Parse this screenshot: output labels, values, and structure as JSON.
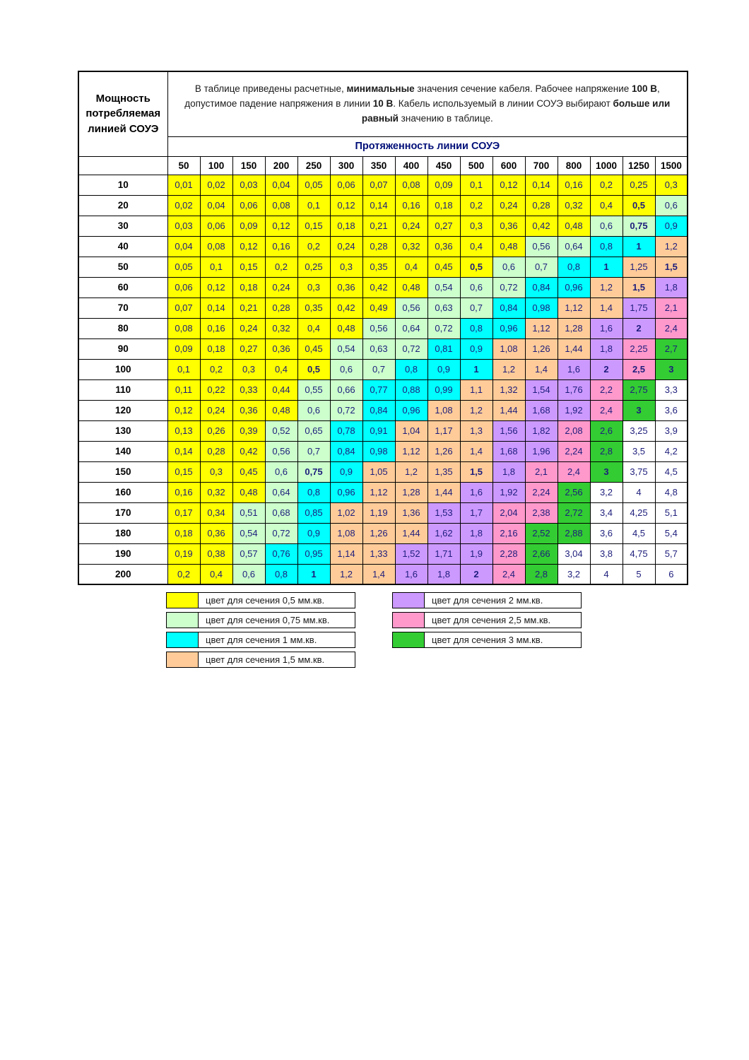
{
  "table": {
    "power_header": "Мощность потребляемая линией СОУЭ",
    "length_header": "Протяженность линии СОУЭ",
    "note_segments": [
      {
        "text": "В таблице приведены расчетные, ",
        "bold": false
      },
      {
        "text": "минимальные",
        "bold": true
      },
      {
        "text": " значения сечение кабеля. Рабочее напряжение ",
        "bold": false
      },
      {
        "text": "100 В",
        "bold": true
      },
      {
        "text": ", допустимое падение напряжения в линии ",
        "bold": false
      },
      {
        "text": "10 В",
        "bold": true
      },
      {
        "text": ". Кабель используемый в линии СОУЭ выбирают ",
        "bold": false
      },
      {
        "text": "больше или равный",
        "bold": true
      },
      {
        "text": " значению в таблице.",
        "bold": false
      }
    ],
    "columns": [
      "50",
      "100",
      "150",
      "200",
      "250",
      "300",
      "350",
      "400",
      "450",
      "500",
      "600",
      "700",
      "800",
      "1000",
      "1250",
      "1500"
    ],
    "rows": [
      {
        "power": "10",
        "values": [
          "0,01",
          "0,02",
          "0,03",
          "0,04",
          "0,05",
          "0,06",
          "0,07",
          "0,08",
          "0,09",
          "0,1",
          "0,12",
          "0,14",
          "0,16",
          "0,2",
          "0,25",
          "0,3"
        ]
      },
      {
        "power": "20",
        "values": [
          "0,02",
          "0,04",
          "0,06",
          "0,08",
          "0,1",
          "0,12",
          "0,14",
          "0,16",
          "0,18",
          "0,2",
          "0,24",
          "0,28",
          "0,32",
          "0,4",
          "0,5",
          "0,6"
        ]
      },
      {
        "power": "30",
        "values": [
          "0,03",
          "0,06",
          "0,09",
          "0,12",
          "0,15",
          "0,18",
          "0,21",
          "0,24",
          "0,27",
          "0,3",
          "0,36",
          "0,42",
          "0,48",
          "0,6",
          "0,75",
          "0,9"
        ]
      },
      {
        "power": "40",
        "values": [
          "0,04",
          "0,08",
          "0,12",
          "0,16",
          "0,2",
          "0,24",
          "0,28",
          "0,32",
          "0,36",
          "0,4",
          "0,48",
          "0,56",
          "0,64",
          "0,8",
          "1",
          "1,2"
        ]
      },
      {
        "power": "50",
        "values": [
          "0,05",
          "0,1",
          "0,15",
          "0,2",
          "0,25",
          "0,3",
          "0,35",
          "0,4",
          "0,45",
          "0,5",
          "0,6",
          "0,7",
          "0,8",
          "1",
          "1,25",
          "1,5"
        ]
      },
      {
        "power": "60",
        "values": [
          "0,06",
          "0,12",
          "0,18",
          "0,24",
          "0,3",
          "0,36",
          "0,42",
          "0,48",
          "0,54",
          "0,6",
          "0,72",
          "0,84",
          "0,96",
          "1,2",
          "1,5",
          "1,8"
        ]
      },
      {
        "power": "70",
        "values": [
          "0,07",
          "0,14",
          "0,21",
          "0,28",
          "0,35",
          "0,42",
          "0,49",
          "0,56",
          "0,63",
          "0,7",
          "0,84",
          "0,98",
          "1,12",
          "1,4",
          "1,75",
          "2,1"
        ]
      },
      {
        "power": "80",
        "values": [
          "0,08",
          "0,16",
          "0,24",
          "0,32",
          "0,4",
          "0,48",
          "0,56",
          "0,64",
          "0,72",
          "0,8",
          "0,96",
          "1,12",
          "1,28",
          "1,6",
          "2",
          "2,4"
        ]
      },
      {
        "power": "90",
        "values": [
          "0,09",
          "0,18",
          "0,27",
          "0,36",
          "0,45",
          "0,54",
          "0,63",
          "0,72",
          "0,81",
          "0,9",
          "1,08",
          "1,26",
          "1,44",
          "1,8",
          "2,25",
          "2,7"
        ]
      },
      {
        "power": "100",
        "values": [
          "0,1",
          "0,2",
          "0,3",
          "0,4",
          "0,5",
          "0,6",
          "0,7",
          "0,8",
          "0,9",
          "1",
          "1,2",
          "1,4",
          "1,6",
          "2",
          "2,5",
          "3"
        ]
      },
      {
        "power": "110",
        "values": [
          "0,11",
          "0,22",
          "0,33",
          "0,44",
          "0,55",
          "0,66",
          "0,77",
          "0,88",
          "0,99",
          "1,1",
          "1,32",
          "1,54",
          "1,76",
          "2,2",
          "2,75",
          "3,3"
        ]
      },
      {
        "power": "120",
        "values": [
          "0,12",
          "0,24",
          "0,36",
          "0,48",
          "0,6",
          "0,72",
          "0,84",
          "0,96",
          "1,08",
          "1,2",
          "1,44",
          "1,68",
          "1,92",
          "2,4",
          "3",
          "3,6"
        ]
      },
      {
        "power": "130",
        "values": [
          "0,13",
          "0,26",
          "0,39",
          "0,52",
          "0,65",
          "0,78",
          "0,91",
          "1,04",
          "1,17",
          "1,3",
          "1,56",
          "1,82",
          "2,08",
          "2,6",
          "3,25",
          "3,9"
        ]
      },
      {
        "power": "140",
        "values": [
          "0,14",
          "0,28",
          "0,42",
          "0,56",
          "0,7",
          "0,84",
          "0,98",
          "1,12",
          "1,26",
          "1,4",
          "1,68",
          "1,96",
          "2,24",
          "2,8",
          "3,5",
          "4,2"
        ]
      },
      {
        "power": "150",
        "values": [
          "0,15",
          "0,3",
          "0,45",
          "0,6",
          "0,75",
          "0,9",
          "1,05",
          "1,2",
          "1,35",
          "1,5",
          "1,8",
          "2,1",
          "2,4",
          "3",
          "3,75",
          "4,5"
        ]
      },
      {
        "power": "160",
        "values": [
          "0,16",
          "0,32",
          "0,48",
          "0,64",
          "0,8",
          "0,96",
          "1,12",
          "1,28",
          "1,44",
          "1,6",
          "1,92",
          "2,24",
          "2,56",
          "3,2",
          "4",
          "4,8"
        ]
      },
      {
        "power": "170",
        "values": [
          "0,17",
          "0,34",
          "0,51",
          "0,68",
          "0,85",
          "1,02",
          "1,19",
          "1,36",
          "1,53",
          "1,7",
          "2,04",
          "2,38",
          "2,72",
          "3,4",
          "4,25",
          "5,1"
        ]
      },
      {
        "power": "180",
        "values": [
          "0,18",
          "0,36",
          "0,54",
          "0,72",
          "0,9",
          "1,08",
          "1,26",
          "1,44",
          "1,62",
          "1,8",
          "2,16",
          "2,52",
          "2,88",
          "3,6",
          "4,5",
          "5,4"
        ]
      },
      {
        "power": "190",
        "values": [
          "0,19",
          "0,38",
          "0,57",
          "0,76",
          "0,95",
          "1,14",
          "1,33",
          "1,52",
          "1,71",
          "1,9",
          "2,28",
          "2,66",
          "3,04",
          "3,8",
          "4,75",
          "5,7"
        ]
      },
      {
        "power": "200",
        "values": [
          "0,2",
          "0,4",
          "0,6",
          "0,8",
          "1",
          "1,2",
          "1,4",
          "1,6",
          "1,8",
          "2",
          "2,4",
          "2,8",
          "3,2",
          "4",
          "5",
          "6"
        ]
      }
    ]
  },
  "legend": {
    "sections": [
      {
        "value": 0.5,
        "color": "#ffff00",
        "label": "цвет для сечения 0,5 мм.кв."
      },
      {
        "value": 0.75,
        "color": "#ccffcc",
        "label": "цвет для сечения 0,75 мм.кв."
      },
      {
        "value": 1,
        "color": "#00ffff",
        "label": "цвет для сечения 1 мм.кв."
      },
      {
        "value": 1.5,
        "color": "#ffcc99",
        "label": "цвет для сечения 1,5 мм.кв."
      },
      {
        "value": 2,
        "color": "#cc99ff",
        "label": "цвет для сечения 2 мм.кв."
      },
      {
        "value": 2.5,
        "color": "#ff99cc",
        "label": "цвет для сечения 2,5 мм.кв."
      },
      {
        "value": 3,
        "color": "#33cc33",
        "label": "цвет для сечения 3 мм.кв."
      }
    ]
  }
}
